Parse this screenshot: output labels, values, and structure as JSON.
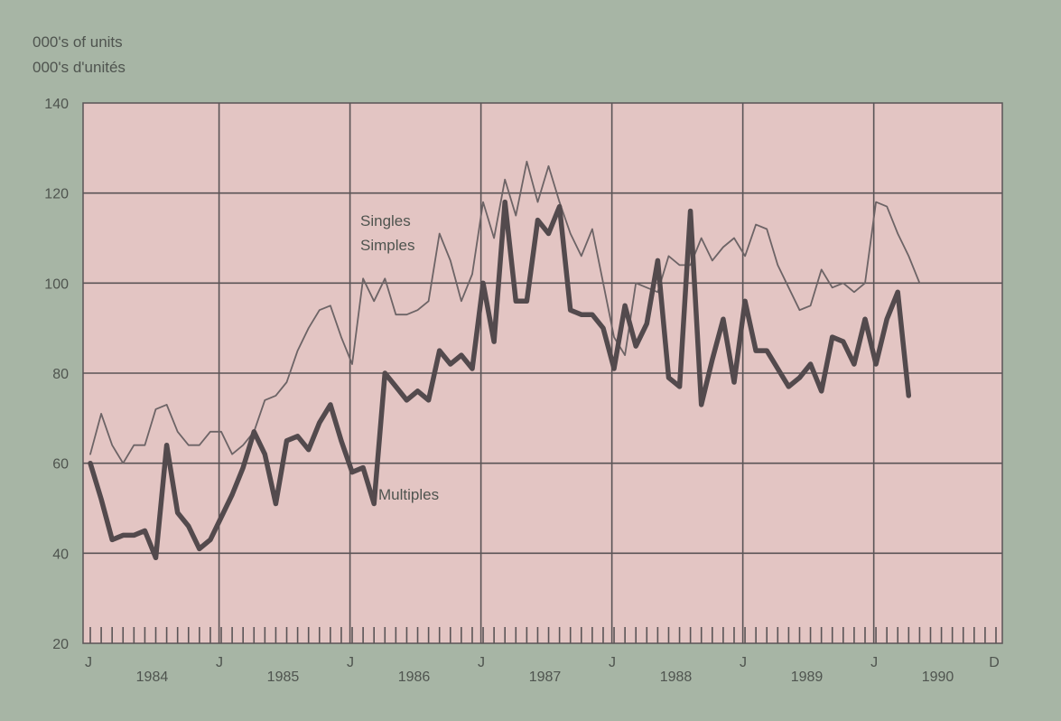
{
  "chart_data": {
    "type": "line",
    "ylabel": [
      "000's of units",
      "000's d'unités"
    ],
    "ylim": [
      20,
      140
    ],
    "y_ticks": [
      20,
      40,
      60,
      80,
      100,
      120,
      140
    ],
    "x_month_markers": [
      "J",
      "J",
      "J",
      "J",
      "J",
      "J",
      "J",
      "D"
    ],
    "x_year_labels": [
      "1984",
      "1985",
      "1986",
      "1987",
      "1988",
      "1989",
      "1990"
    ],
    "grid": true,
    "colors": {
      "plot_bg": "#e3c5c3",
      "page_bg": "#a7b5a5",
      "singles": "#6d6466",
      "multiples": "#534a4d",
      "grid": "#5a5456"
    },
    "series": [
      {
        "name": "Singles",
        "alt_name": "Simples",
        "values": [
          62,
          71,
          64,
          60,
          64,
          64,
          72,
          73,
          67,
          64,
          64,
          67,
          67,
          62,
          64,
          67,
          74,
          75,
          78,
          85,
          90,
          94,
          95,
          88,
          82,
          101,
          96,
          101,
          93,
          93,
          94,
          96,
          111,
          105,
          96,
          102,
          118,
          110,
          123,
          115,
          127,
          118,
          126,
          118,
          111,
          106,
          112,
          100,
          88,
          84,
          100,
          99,
          98,
          106,
          104,
          104,
          110,
          105,
          108,
          110,
          106,
          113,
          112,
          104,
          99,
          94,
          95,
          103,
          99,
          100,
          98,
          100,
          118,
          117,
          111,
          106,
          100
        ],
        "end": "1989-05"
      },
      {
        "name": "Multiples",
        "values": [
          60,
          52,
          43,
          44,
          44,
          45,
          39,
          64,
          49,
          46,
          41,
          43,
          48,
          53,
          59,
          67,
          62,
          51,
          65,
          66,
          63,
          69,
          73,
          65,
          58,
          59,
          51,
          80,
          77,
          74,
          76,
          74,
          85,
          82,
          84,
          81,
          100,
          87,
          118,
          96,
          96,
          114,
          111,
          117,
          94,
          93,
          93,
          90,
          81,
          95,
          86,
          91,
          105,
          79,
          77,
          116,
          73,
          83,
          92,
          78,
          96,
          85,
          85,
          81,
          77,
          79,
          82,
          76,
          88,
          87,
          82,
          92,
          82,
          92,
          98,
          75
        ],
        "end": "1989-04"
      }
    ],
    "annotations": [
      {
        "text": "Singles",
        "series": "Singles"
      },
      {
        "text": "Simples",
        "series": "Singles"
      },
      {
        "text": "Multiples",
        "series": "Multiples"
      }
    ]
  }
}
